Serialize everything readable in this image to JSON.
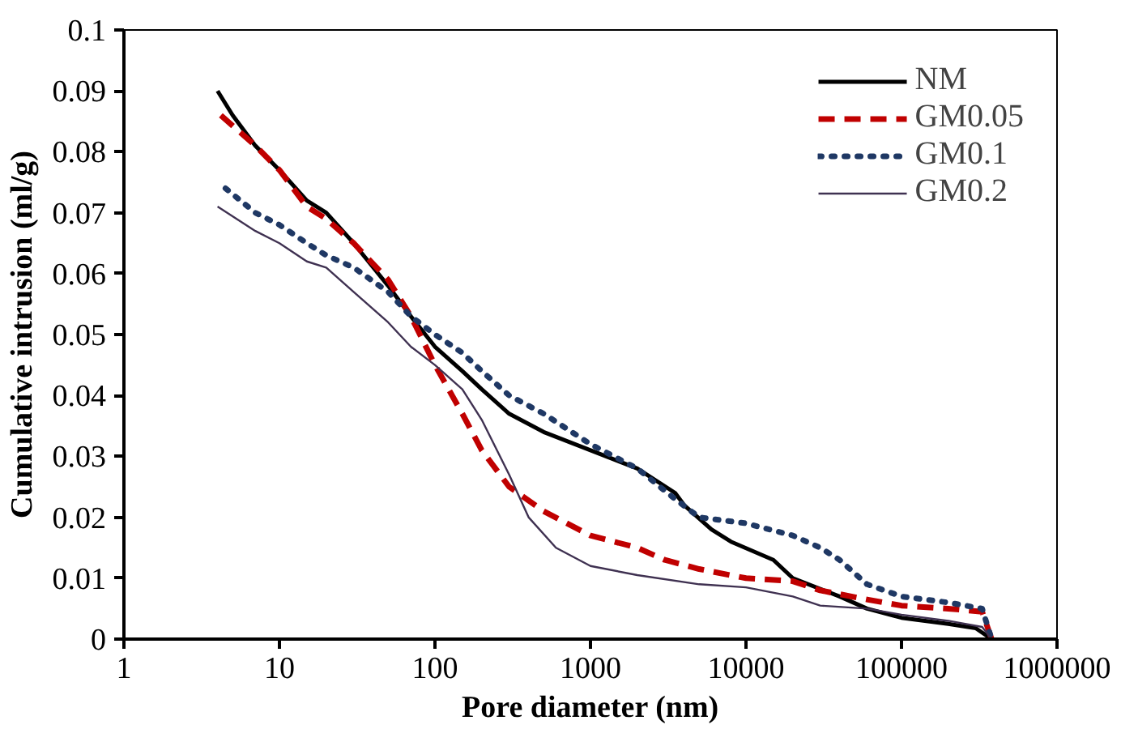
{
  "chart_data": {
    "type": "line",
    "xlabel": "Pore diameter (nm)",
    "ylabel": "Cumulative intrusion (ml/g)",
    "log": "x",
    "grid": false,
    "legend": "top right",
    "xlim": [
      1,
      1000000
    ],
    "ylim": [
      0,
      0.1
    ],
    "xticks": [
      1,
      10,
      100,
      1000,
      10000,
      100000,
      1000000
    ],
    "yticks": [
      0,
      0.01,
      0.02,
      0.03,
      0.04,
      0.05,
      0.06,
      0.07,
      0.08,
      0.09,
      0.1
    ],
    "series": [
      {
        "name": "NM",
        "color": "#000000",
        "line_style": "solid",
        "x": [
          4,
          5,
          7,
          10,
          15,
          20,
          30,
          50,
          70,
          100,
          150,
          200,
          300,
          500,
          1000,
          2000,
          3500,
          4000,
          6000,
          8000,
          15000,
          20000,
          40000,
          60000,
          100000,
          200000,
          300000,
          380000
        ],
        "values": [
          0.09,
          0.086,
          0.081,
          0.077,
          0.072,
          0.07,
          0.065,
          0.058,
          0.053,
          0.048,
          0.044,
          0.041,
          0.037,
          0.034,
          0.031,
          0.028,
          0.024,
          0.022,
          0.018,
          0.016,
          0.013,
          0.01,
          0.007,
          0.005,
          0.0035,
          0.0025,
          0.0018,
          0
        ]
      },
      {
        "name": "GM0.05",
        "color": "#c00000",
        "line_style": "dashed",
        "x": [
          4.2,
          7,
          10,
          15,
          20,
          30,
          50,
          70,
          100,
          150,
          200,
          300,
          500,
          1000,
          2000,
          3000,
          5000,
          10000,
          20000,
          30000,
          60000,
          100000,
          200000,
          330000,
          380000
        ],
        "values": [
          0.086,
          0.081,
          0.077,
          0.071,
          0.069,
          0.065,
          0.059,
          0.053,
          0.045,
          0.037,
          0.031,
          0.025,
          0.021,
          0.017,
          0.015,
          0.013,
          0.0115,
          0.01,
          0.0095,
          0.008,
          0.0065,
          0.0055,
          0.005,
          0.0045,
          0
        ]
      },
      {
        "name": "GM0.1",
        "color": "#1f3864",
        "line_style": "dotted",
        "x": [
          4.5,
          7,
          10,
          15,
          20,
          30,
          50,
          70,
          100,
          150,
          200,
          300,
          500,
          1000,
          2000,
          3500,
          5000,
          10000,
          20000,
          30000,
          40000,
          60000,
          100000,
          200000,
          330000,
          380000
        ],
        "values": [
          0.074,
          0.07,
          0.068,
          0.065,
          0.063,
          0.061,
          0.057,
          0.053,
          0.05,
          0.047,
          0.044,
          0.04,
          0.037,
          0.032,
          0.028,
          0.023,
          0.02,
          0.019,
          0.017,
          0.015,
          0.013,
          0.009,
          0.007,
          0.006,
          0.005,
          0
        ]
      },
      {
        "name": "GM0.2",
        "color": "#3f3151",
        "line_style": "solid",
        "x": [
          4,
          7,
          10,
          15,
          20,
          30,
          50,
          70,
          100,
          150,
          200,
          300,
          400,
          600,
          1000,
          2000,
          5000,
          10000,
          20000,
          30000,
          60000,
          100000,
          200000,
          330000,
          380000
        ],
        "values": [
          0.071,
          0.067,
          0.065,
          0.062,
          0.061,
          0.057,
          0.052,
          0.048,
          0.045,
          0.041,
          0.036,
          0.027,
          0.02,
          0.015,
          0.012,
          0.0105,
          0.009,
          0.0085,
          0.007,
          0.0055,
          0.005,
          0.004,
          0.003,
          0.002,
          0
        ]
      }
    ]
  }
}
